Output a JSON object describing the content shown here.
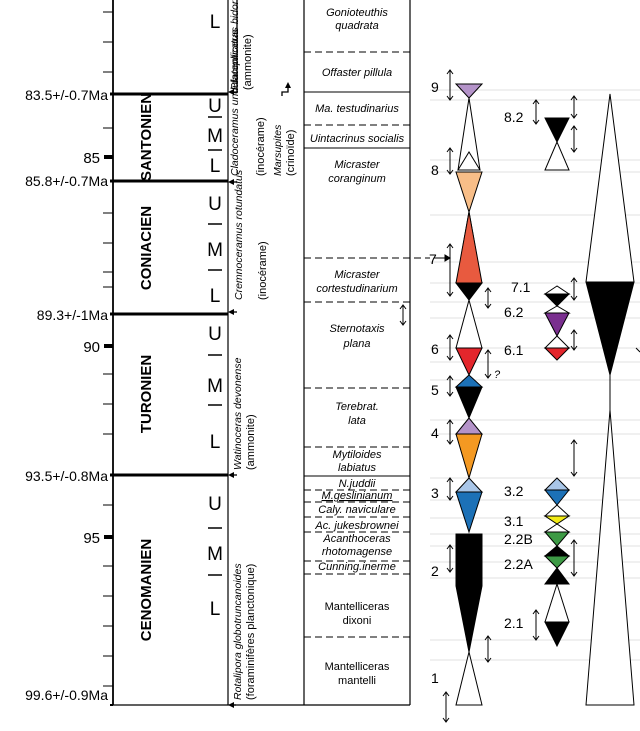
{
  "ages": [
    {
      "label": "83.5+/-0.7Ma"
    },
    {
      "label": "85"
    },
    {
      "label": "85.8+/-0.7Ma"
    },
    {
      "label": "89.3+/-1Ma"
    },
    {
      "label": "90"
    },
    {
      "label": "93.5+/-0.8Ma"
    },
    {
      "label": "95"
    },
    {
      "label": "99.6+/-0.9Ma"
    }
  ],
  "stages": [
    {
      "name": "SANTONIEN"
    },
    {
      "name": "CONIACIEN"
    },
    {
      "name": "TURONIEN"
    },
    {
      "name": "CENOMANIEN"
    }
  ],
  "substages": [
    "L",
    "U",
    "M",
    "L",
    "U",
    "M",
    "L",
    "U",
    "M",
    "L",
    "U",
    "M",
    "L"
  ],
  "biozone_taxa": [
    {
      "name": "Placenticeras bidorsatum",
      "group": "(ammonite)"
    },
    {
      "name": "Cladoceramus undulatoplicatus",
      "group": "(inocérame)"
    },
    {
      "name": "Marsupites",
      "group": "(crinoïde)"
    },
    {
      "name": "Cremnoceramus rotundatus",
      "group": "(inocérame)"
    },
    {
      "name": "Watinoceras devonense",
      "group": "(ammonite)"
    },
    {
      "name": "Rotalipora globotruncanoides",
      "group": "(foraminifères planctonique)"
    }
  ],
  "zones": [
    {
      "lines": [
        "Gonioteuthis",
        "quadrata"
      ]
    },
    {
      "lines": [
        "Offaster pillula"
      ]
    },
    {
      "lines": [
        "Ma. testudinarius"
      ]
    },
    {
      "lines": [
        "Uintacrinus socialis"
      ]
    },
    {
      "lines": [
        "Micraster",
        "coranginum"
      ]
    },
    {
      "lines": [
        "Micraster",
        "cortestudinarium"
      ]
    },
    {
      "lines": [
        "Sternotaxis",
        "plana"
      ]
    },
    {
      "lines": [
        "Terebrat.",
        "lata"
      ]
    },
    {
      "lines": [
        "Mytiloides",
        "labiatus"
      ]
    },
    {
      "lines": [
        "N.juddii"
      ]
    },
    {
      "lines": [
        "M.geslinianum"
      ]
    },
    {
      "lines": [
        "Caly. naviculare"
      ]
    },
    {
      "lines": [
        "Ac. jukesbrownei"
      ]
    },
    {
      "lines": [
        "Acanthoceras",
        "rhotomagense"
      ]
    },
    {
      "lines": [
        "Cunning.inerme"
      ]
    },
    {
      "lines": [
        "Mantelliceras",
        "dixoni"
      ]
    },
    {
      "lines": [
        "Mantelliceras",
        "mantelli"
      ]
    }
  ],
  "sequences": [
    {
      "label": "9"
    },
    {
      "label": "8"
    },
    {
      "label": "7"
    },
    {
      "label": "6"
    },
    {
      "label": "5"
    },
    {
      "label": "4"
    },
    {
      "label": "3"
    },
    {
      "label": "2"
    },
    {
      "label": "1"
    }
  ],
  "subsequences": [
    {
      "label": "8.2"
    },
    {
      "label": "7.1"
    },
    {
      "label": "6.2"
    },
    {
      "label": "6.1"
    },
    {
      "label": "3.2"
    },
    {
      "label": "3.1"
    },
    {
      "label": "2.2B"
    },
    {
      "label": "2.2A"
    },
    {
      "label": "2.1"
    }
  ],
  "question_mark": "?",
  "colors": {
    "purple": "#b493c9",
    "violet": "#7a2f8f",
    "peach": "#f8be88",
    "salmon": "#e85a3f",
    "red": "#e3262c",
    "blue": "#1c71b7",
    "lightblue": "#a9c6e8",
    "orange": "#f49922",
    "yellow": "#f2eb16",
    "green": "#3d9a45",
    "black": "#000000",
    "grid": "#d0d0d0"
  }
}
